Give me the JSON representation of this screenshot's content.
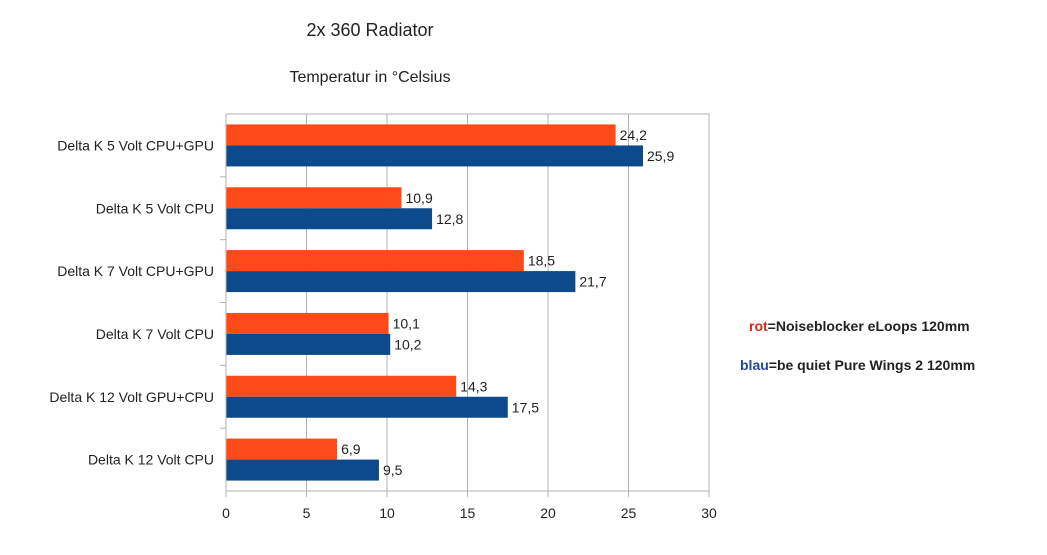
{
  "chart_data": {
    "type": "bar",
    "orientation": "horizontal",
    "title": "2x 360 Radiator",
    "subtitle": "Temperatur in °Celsius",
    "categories": [
      "Delta K 5 Volt CPU+GPU",
      "Delta K 5 Volt CPU",
      "Delta K 7 Volt CPU+GPU",
      "Delta K 7 Volt CPU",
      "Delta K 12 Volt GPU+CPU",
      "Delta K 12 Volt CPU"
    ],
    "series": [
      {
        "color": "#ff4a17",
        "values": [
          24.2,
          10.9,
          18.5,
          10.1,
          14.3,
          6.9
        ],
        "labels": [
          "24,2",
          "10,9",
          "18,5",
          "10,1",
          "14,3",
          "6,9"
        ]
      },
      {
        "color": "#0d4a8c",
        "values": [
          25.9,
          12.8,
          21.7,
          10.2,
          17.5,
          9.5
        ],
        "labels": [
          "25,9",
          "12,8",
          "21,7",
          "10,2",
          "17,5",
          "9,5"
        ]
      }
    ],
    "xlim": [
      0,
      30
    ],
    "xticks": [
      0,
      5,
      10,
      15,
      20,
      25,
      30
    ],
    "grid": true
  },
  "legend": {
    "red_keyword": "rot",
    "red_text": "=Noiseblocker eLoops 120mm",
    "blue_keyword": "blau",
    "blue_text": "=be quiet Pure Wings 2 120mm",
    "red_color": "#d8261b",
    "blue_color": "#2a4596"
  }
}
